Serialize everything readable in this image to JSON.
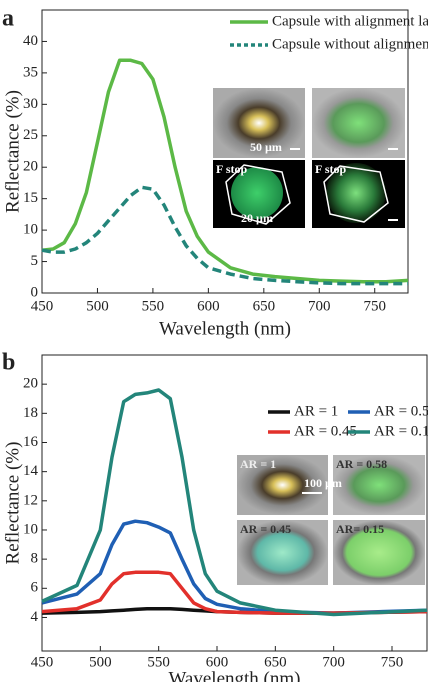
{
  "chart_data": [
    {
      "type": "line",
      "panel": "a",
      "xlabel": "Wavelength (nm)",
      "ylabel": "Reflectance (%)",
      "x": [
        450,
        460,
        470,
        480,
        490,
        500,
        510,
        520,
        530,
        540,
        550,
        560,
        570,
        580,
        590,
        600,
        620,
        640,
        660,
        680,
        700,
        720,
        740,
        760,
        780
      ],
      "series": [
        {
          "name": "Capsule with alignment layer",
          "color": "#5cb946",
          "dash": "solid",
          "values": [
            6.8,
            7,
            8,
            11,
            16,
            24,
            32,
            37,
            37,
            36.5,
            34,
            28,
            20,
            13,
            9,
            6.5,
            4,
            3,
            2.6,
            2.3,
            2,
            1.9,
            1.8,
            1.8,
            2
          ]
        },
        {
          "name": "Capsule without alignment layer",
          "color": "#23857a",
          "dash": "dashed",
          "values": [
            6.8,
            6.5,
            6.5,
            7,
            8,
            9.5,
            11.5,
            13.5,
            15.5,
            16.8,
            16.5,
            14,
            10.5,
            7.5,
            5.5,
            4,
            3,
            2.3,
            2,
            1.8,
            1.6,
            1.5,
            1.5,
            1.5,
            1.5
          ]
        }
      ],
      "xlim": [
        450,
        780
      ],
      "xticks": [
        450,
        500,
        550,
        600,
        650,
        700,
        750
      ],
      "ylim": [
        0,
        45
      ],
      "yticks": [
        0,
        5,
        10,
        15,
        20,
        25,
        30,
        35,
        40
      ],
      "grid": false,
      "annotations": [
        "50 µm",
        "F stop",
        "20 µm",
        "F stop"
      ]
    },
    {
      "type": "line",
      "panel": "b",
      "xlabel": "Wavelength (nm)",
      "ylabel": "Reflectance (%)",
      "x": [
        450,
        480,
        500,
        510,
        520,
        530,
        540,
        550,
        560,
        570,
        580,
        590,
        600,
        620,
        650,
        700,
        780
      ],
      "series": [
        {
          "name": "AR = 1",
          "color": "#111111",
          "dash": "solid",
          "values": [
            4.3,
            4.35,
            4.4,
            4.45,
            4.5,
            4.55,
            4.6,
            4.6,
            4.6,
            4.55,
            4.5,
            4.45,
            4.4,
            4.35,
            4.3,
            4.3,
            4.4
          ]
        },
        {
          "name": "AR = 0.58",
          "color": "#1f5fb4",
          "dash": "solid",
          "values": [
            5,
            5.6,
            7,
            9,
            10.4,
            10.6,
            10.5,
            10.2,
            9.8,
            8,
            6.3,
            5.3,
            4.9,
            4.6,
            4.4,
            4.3,
            4.5
          ]
        },
        {
          "name": "AR = 0.45",
          "color": "#e2302b",
          "dash": "solid",
          "values": [
            4.4,
            4.6,
            5.2,
            6.3,
            7,
            7.1,
            7.1,
            7.1,
            7,
            6,
            5,
            4.6,
            4.4,
            4.35,
            4.3,
            4.3,
            4.4
          ]
        },
        {
          "name": "AR = 0.15",
          "color": "#23857a",
          "dash": "solid",
          "values": [
            5.1,
            6.2,
            10,
            15,
            18.8,
            19.3,
            19.4,
            19.6,
            19,
            15,
            10,
            7,
            5.8,
            5,
            4.5,
            4.2,
            4.5
          ]
        }
      ],
      "xlim": [
        450,
        780
      ],
      "xticks": [
        450,
        500,
        550,
        600,
        650,
        700,
        750
      ],
      "ylim": [
        1.7,
        22
      ],
      "yticks": [
        4,
        6,
        8,
        10,
        12,
        14,
        16,
        18,
        20
      ],
      "grid": false,
      "annotations": [
        "AR = 1",
        "AR = 0.58",
        "100 µm",
        "AR = 0.45",
        "AR= 0.15"
      ]
    }
  ]
}
